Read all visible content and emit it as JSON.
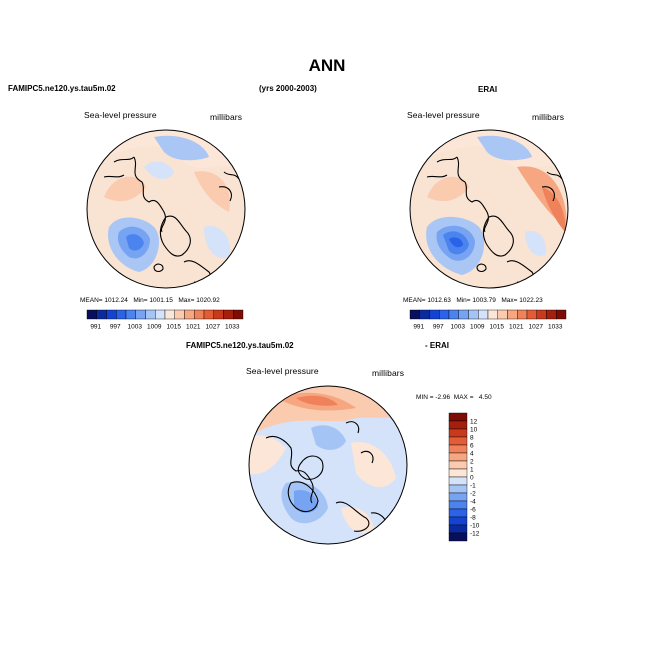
{
  "figure": {
    "title": "ANN",
    "left_header": "FAMIPC5.ne120.ys.tau5m.02",
    "center_header": "(yrs 2000-2003)",
    "right_header": "ERAI",
    "diff_header_left": "FAMIPC5.ne120.ys.tau5m.02",
    "diff_header_right": "- ERAI"
  },
  "panels": {
    "model": {
      "variable": "Sea-level pressure",
      "units": "millibars",
      "mean_label": "MEAN=",
      "mean": "1012.24",
      "min_label": "Min=",
      "min": "1001.15",
      "max_label": "Max=",
      "max": "1020.92"
    },
    "obs": {
      "variable": "Sea-level pressure",
      "units": "millibars",
      "mean_label": "MEAN=",
      "mean": "1012.63",
      "min_label": "Min=",
      "min": "1003.79",
      "max_label": "Max=",
      "max": "1022.23"
    },
    "diff": {
      "variable": "Sea-level pressure",
      "units": "millibars",
      "min_label": "MIN =",
      "min": "-2.96",
      "max_label": "MAX =",
      "max": "4.50"
    }
  },
  "colorbar_abs": {
    "ticks": [
      "991",
      "997",
      "1003",
      "1009",
      "1015",
      "1021",
      "1027",
      "1033"
    ],
    "colors": [
      "#08105c",
      "#0a2a9e",
      "#1443d4",
      "#2b62e8",
      "#4b83ef",
      "#76a4f2",
      "#a5c4f6",
      "#d4e2fa",
      "#fbe6d8",
      "#fbcbb0",
      "#f6a782",
      "#ef825a",
      "#e45c36",
      "#c93a1c",
      "#a51e0e",
      "#7d0d04"
    ]
  },
  "colorbar_diff": {
    "ticks": [
      "12",
      "10",
      "8",
      "6",
      "4",
      "2",
      "1",
      "0",
      "-1",
      "-2",
      "-4",
      "-6",
      "-8",
      "-10",
      "-12"
    ],
    "colors": [
      "#7d0d04",
      "#a51e0e",
      "#c93a1c",
      "#e45c36",
      "#ef825a",
      "#f6a782",
      "#fbcbb0",
      "#fbe6d8",
      "#d4e2fa",
      "#a5c4f6",
      "#76a4f2",
      "#4b83ef",
      "#2b62e8",
      "#1443d4",
      "#0a2a9e",
      "#08105c"
    ]
  },
  "colors": {
    "low": "#3f6fe6",
    "mid_low": "#a9c6f5",
    "near": "#f9e3d3",
    "mid_high": "#f7b690",
    "high": "#e9734c",
    "coast": "#000000"
  }
}
